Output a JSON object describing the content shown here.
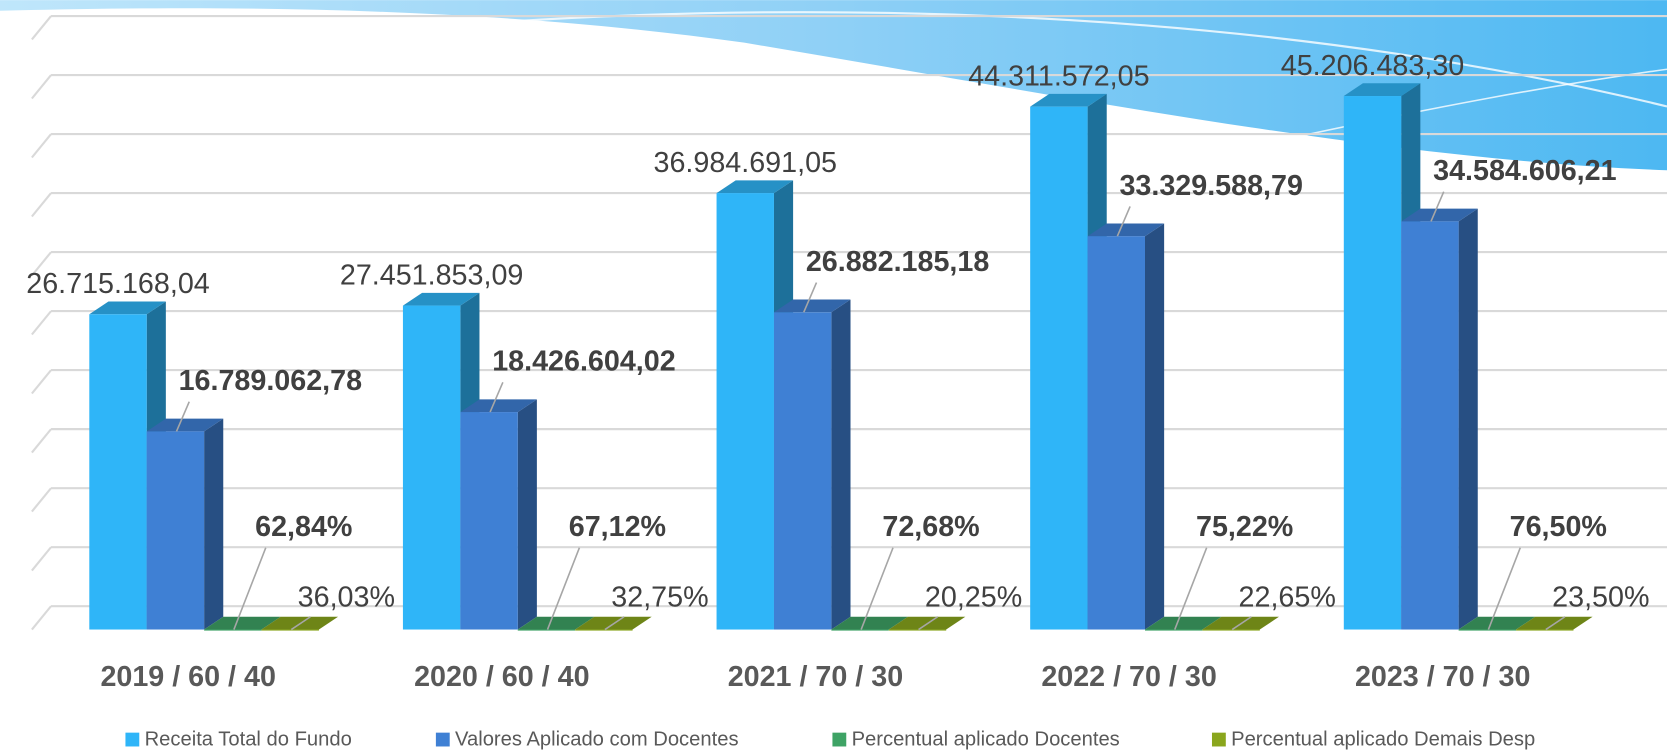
{
  "chart_data": {
    "type": "bar3d",
    "categories": [
      "2019 / 60 / 40",
      "2020 / 60 / 40",
      "2021 / 70 / 30",
      "2022 / 70 / 30",
      "2023 / 70 / 30"
    ],
    "series": [
      {
        "name": "Receita Total do Fundo",
        "color": "#2fb5f8",
        "values": [
          26715168.04,
          27451853.09,
          36984691.05,
          44311572.05,
          45206483.3
        ],
        "value_labels": [
          "26.715.168,04",
          "27.451.853,09",
          "36.984.691,05",
          "44.311.572,05",
          "45.206.483,30"
        ]
      },
      {
        "name": "Valores Aplicado com Docentes",
        "color": "#3f80d4",
        "values": [
          16789062.78,
          18426604.02,
          26882185.18,
          33329588.79,
          34584606.21
        ],
        "value_labels": [
          "16.789.062,78",
          "18.426.604,02",
          "26.882.185,18",
          "33.329.588,79",
          "34.584.606,21"
        ]
      },
      {
        "name": "Percentual aplicado Docentes",
        "color": "#3ea365",
        "values": [
          62.84,
          67.12,
          72.68,
          75.22,
          76.5
        ],
        "value_labels": [
          "62,84%",
          "67,12%",
          "72,68%",
          "75,22%",
          "76,50%"
        ]
      },
      {
        "name": "Percentual aplicado Demais Desp",
        "color": "#8aa61d",
        "values": [
          36.03,
          32.75,
          20.25,
          22.65,
          23.5
        ],
        "value_labels": [
          "36,03%",
          "32,75%",
          "20,25%",
          "22,65%",
          "23,50%"
        ]
      }
    ],
    "ylim": [
      0,
      50000000
    ],
    "grid": true
  }
}
